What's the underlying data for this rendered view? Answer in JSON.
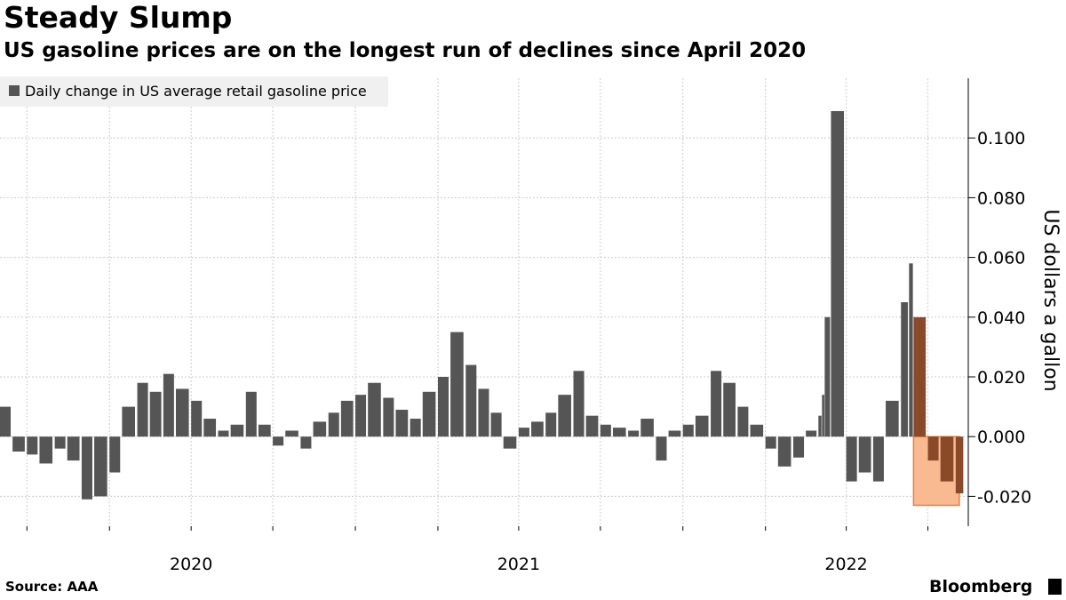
{
  "header": {
    "title": "Steady Slump",
    "subtitle": "US gasoline prices are on the longest run of declines since April 2020"
  },
  "footer": {
    "source": "Source: AAA",
    "brand": "Bloomberg"
  },
  "colors": {
    "bar": "#555555",
    "highlight_bar": "#8a4a2a",
    "highlight_fill": "#f9b991",
    "highlight_stroke": "#e8813f",
    "grid": "#cccccc",
    "legend_bg": "#f0f0f0"
  },
  "chart_data": {
    "type": "bar",
    "title": "Steady Slump",
    "subtitle": "US gasoline prices are on the longest run of declines since April 2020",
    "legend": {
      "entries": [
        "Daily change in US average retail gasoline price"
      ],
      "placement": "top-left"
    },
    "ylabel": "US dollars a gallon",
    "y_axis_side": "right",
    "ylim": [
      -0.03,
      0.12
    ],
    "yticks": [
      -0.02,
      0.0,
      0.02,
      0.04,
      0.06,
      0.08,
      0.1
    ],
    "ytick_labels": [
      "-0.020",
      "0.000",
      "0.020",
      "0.040",
      "0.060",
      "0.080",
      "0.100"
    ],
    "xlim": [
      "2019-09-01",
      "2022-08-15"
    ],
    "xtick_labels": [
      "2020",
      "2021",
      "2022"
    ],
    "xtick_dates": [
      "2020-04-01",
      "2021-04-01",
      "2022-04-01"
    ],
    "grid": true,
    "highlight": {
      "from": "2022-06-15",
      "to": "2022-08-05",
      "y_range": [
        -0.023,
        0.0
      ],
      "description": "longest run of declines"
    },
    "x": [
      "2019-09-01",
      "2019-09-15",
      "2019-10-01",
      "2019-10-15",
      "2019-11-01",
      "2019-11-15",
      "2019-12-01",
      "2019-12-15",
      "2020-01-01",
      "2020-01-15",
      "2020-02-01",
      "2020-02-15",
      "2020-03-01",
      "2020-03-15",
      "2020-04-01",
      "2020-04-15",
      "2020-05-01",
      "2020-05-15",
      "2020-06-01",
      "2020-06-15",
      "2020-07-01",
      "2020-07-15",
      "2020-08-01",
      "2020-08-15",
      "2020-09-01",
      "2020-09-15",
      "2020-10-01",
      "2020-10-15",
      "2020-11-01",
      "2020-11-15",
      "2020-12-01",
      "2020-12-15",
      "2021-01-01",
      "2021-01-15",
      "2021-02-01",
      "2021-02-15",
      "2021-03-01",
      "2021-03-15",
      "2021-04-01",
      "2021-04-15",
      "2021-05-01",
      "2021-05-15",
      "2021-06-01",
      "2021-06-15",
      "2021-07-01",
      "2021-07-15",
      "2021-08-01",
      "2021-08-15",
      "2021-09-01",
      "2021-09-15",
      "2021-10-01",
      "2021-10-15",
      "2021-11-01",
      "2021-11-15",
      "2021-12-01",
      "2021-12-15",
      "2022-01-01",
      "2022-01-15",
      "2022-02-01",
      "2022-02-15",
      "2022-03-01",
      "2022-03-05",
      "2022-03-08",
      "2022-03-15",
      "2022-04-01",
      "2022-04-15",
      "2022-05-01",
      "2022-05-15",
      "2022-06-01",
      "2022-06-10",
      "2022-06-15",
      "2022-07-01",
      "2022-07-15",
      "2022-08-01"
    ],
    "series": [
      {
        "values": [
          0.01,
          -0.005,
          -0.006,
          -0.009,
          -0.004,
          -0.008,
          -0.021,
          -0.02,
          -0.012,
          0.01,
          0.018,
          0.015,
          0.021,
          0.016,
          0.012,
          0.006,
          0.002,
          0.004,
          0.015,
          0.004,
          -0.003,
          0.002,
          -0.004,
          0.005,
          0.008,
          0.012,
          0.014,
          0.018,
          0.013,
          0.009,
          0.006,
          0.015,
          0.02,
          0.035,
          0.024,
          0.016,
          0.008,
          -0.004,
          0.003,
          0.005,
          0.008,
          0.014,
          0.022,
          0.007,
          0.004,
          0.003,
          0.002,
          0.006,
          -0.008,
          0.002,
          0.004,
          0.007,
          0.022,
          0.018,
          0.01,
          0.004,
          -0.004,
          -0.01,
          -0.007,
          0.002,
          0.007,
          0.014,
          0.04,
          0.109,
          -0.015,
          -0.012,
          -0.015,
          0.012,
          0.045,
          0.058,
          0.04,
          -0.008,
          -0.015,
          -0.019
        ]
      }
    ]
  }
}
